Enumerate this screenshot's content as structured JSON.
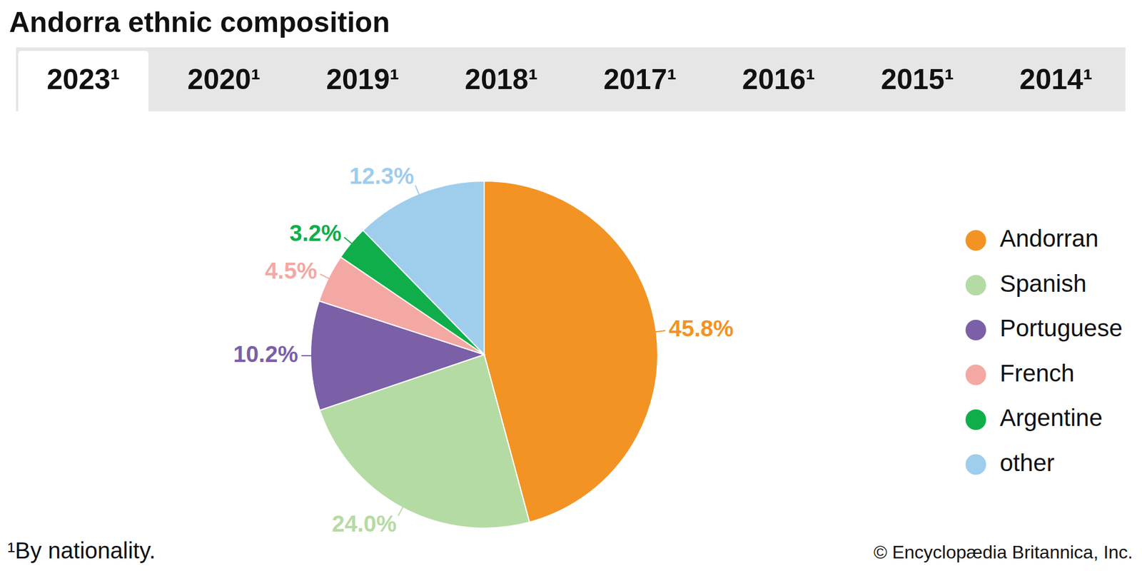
{
  "chart_data": {
    "type": "pie",
    "title": "Andorra ethnic composition",
    "tabs": [
      "2023¹",
      "2020¹",
      "2019¹",
      "2018¹",
      "2017¹",
      "2016¹",
      "2015¹",
      "2014¹"
    ],
    "categories": [
      "Andorran",
      "Spanish",
      "Portuguese",
      "French",
      "Argentine",
      "other"
    ],
    "values": [
      45.8,
      24.0,
      10.2,
      4.5,
      3.2,
      12.3
    ],
    "value_labels": [
      "45.8%",
      "24.0%",
      "10.2%",
      "4.5%",
      "3.2%",
      "12.3%"
    ],
    "colors": [
      "#f39323",
      "#b5dba4",
      "#7b5fa7",
      "#f4a8a3",
      "#0fae4a",
      "#9fcdec"
    ],
    "data_labels": true,
    "legend": "right",
    "footnote": "¹By nationality.",
    "source": "© Encyclopædia Britannica, Inc."
  }
}
